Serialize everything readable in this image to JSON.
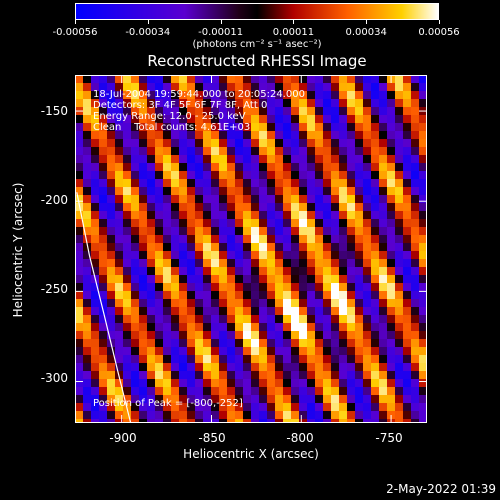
{
  "colorbar": {
    "ticks": [
      "-0.00056",
      "-0.00034",
      "-0.00011",
      "0.00011",
      "0.00034",
      "0.00056"
    ],
    "units": "(photons cm⁻² s⁻¹ asec⁻²)"
  },
  "chart_data": {
    "type": "heatmap",
    "title": "Reconstructed RHESSI Image",
    "xlabel": "Heliocentric X (arcsec)",
    "ylabel": "Heliocentric Y (arcsec)",
    "xlim": [
      -926,
      -730
    ],
    "ylim": [
      -323,
      -130
    ],
    "x_ticks": [
      "-900",
      "-850",
      "-800",
      "-750"
    ],
    "y_ticks": [
      "-150",
      "-200",
      "-250",
      "-300"
    ],
    "x_tick_values": [
      -900,
      -850,
      -800,
      -750
    ],
    "y_tick_values": [
      -150,
      -200,
      -250,
      -300
    ],
    "value_range": [
      -0.00056,
      0.00056
    ],
    "annotations": [
      "18-Jul-2004 19:59:44.000 to 20:05:24.000",
      "Detectors: 3F 4F 5F 6F 7F 8F, Att 0",
      "Energy Range: 12.0 - 25.0 keV",
      "Clean    Total counts: 4.61E+03"
    ],
    "peak_label": "Position of Peak = [-800,-252]",
    "peak": [
      -800,
      -252
    ],
    "limb_curve": [
      [
        -925,
        -195
      ],
      [
        -918,
        -230
      ],
      [
        -910,
        -262
      ],
      [
        -902,
        -295
      ],
      [
        -895,
        -323
      ]
    ]
  },
  "footer": {
    "timestamp": "2-May-2022 01:39"
  }
}
